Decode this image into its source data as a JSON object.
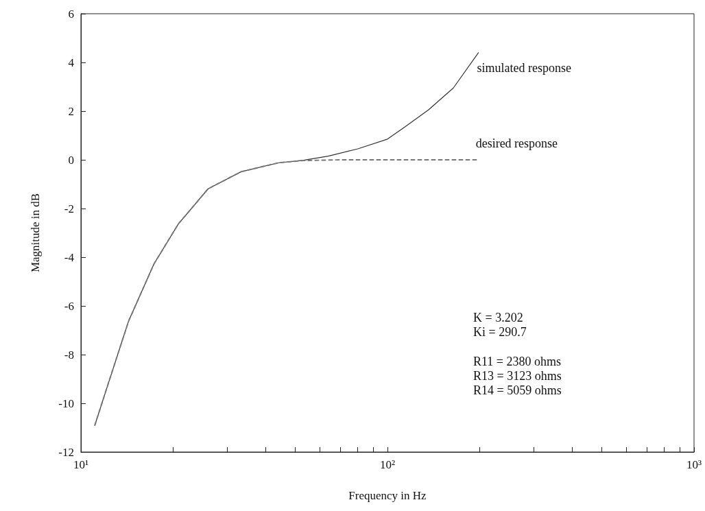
{
  "chart_data": {
    "type": "line",
    "xlabel": "Frequency in Hz",
    "ylabel": "Magnitude in dB",
    "log": "x",
    "xlim": [
      10,
      1000
    ],
    "ylim": [
      -12,
      6
    ],
    "xticks": [
      {
        "value": 10,
        "label": "10¹"
      },
      {
        "value": 20,
        "label": null
      },
      {
        "value": 30,
        "label": null
      },
      {
        "value": 40,
        "label": null
      },
      {
        "value": 50,
        "label": null
      },
      {
        "value": 60,
        "label": null
      },
      {
        "value": 70,
        "label": null
      },
      {
        "value": 80,
        "label": null
      },
      {
        "value": 90,
        "label": null
      },
      {
        "value": 100,
        "label": "10²"
      },
      {
        "value": 200,
        "label": null
      },
      {
        "value": 300,
        "label": null
      },
      {
        "value": 400,
        "label": null
      },
      {
        "value": 500,
        "label": null
      },
      {
        "value": 600,
        "label": null
      },
      {
        "value": 700,
        "label": null
      },
      {
        "value": 800,
        "label": null
      },
      {
        "value": 900,
        "label": null
      },
      {
        "value": 1000,
        "label": "10³"
      }
    ],
    "yticks": [
      -12,
      -10,
      -8,
      -6,
      -4,
      -2,
      0,
      2,
      4,
      6
    ],
    "grid": false,
    "legend": false,
    "marker": "none",
    "series": [
      {
        "name": "simulated response",
        "color": "#333333",
        "line_style": "solid",
        "x": [
          11.1,
          12.5,
          14.3,
          17.3,
          20.8,
          26.0,
          33.3,
          44.2,
          53.2,
          64.1,
          80,
          100,
          114,
          136,
          164,
          198
        ],
        "values": [
          -10.9,
          -8.89,
          -6.63,
          -4.28,
          -2.63,
          -1.19,
          -0.49,
          -0.12,
          -0.02,
          0.15,
          0.45,
          0.85,
          1.35,
          2.05,
          2.95,
          4.4
        ]
      },
      {
        "name": "desired response",
        "color": "#777777",
        "line_style": "dashed",
        "x": [
          11.1,
          12.5,
          14.3,
          17.3,
          20.8,
          26.0,
          33.3,
          44.2,
          53.2,
          70,
          100,
          150,
          196
        ],
        "values": [
          -10.9,
          -8.89,
          -6.63,
          -4.28,
          -2.63,
          -1.19,
          -0.49,
          -0.12,
          -0.03,
          0.0,
          0.0,
          0.0,
          0.0
        ]
      }
    ],
    "annotations": [
      "K = 3.202",
      "Ki = 290.7",
      "R11 = 2380 ohms",
      "R13 = 3123 ohms",
      "R14 = 5059 ohms"
    ]
  }
}
